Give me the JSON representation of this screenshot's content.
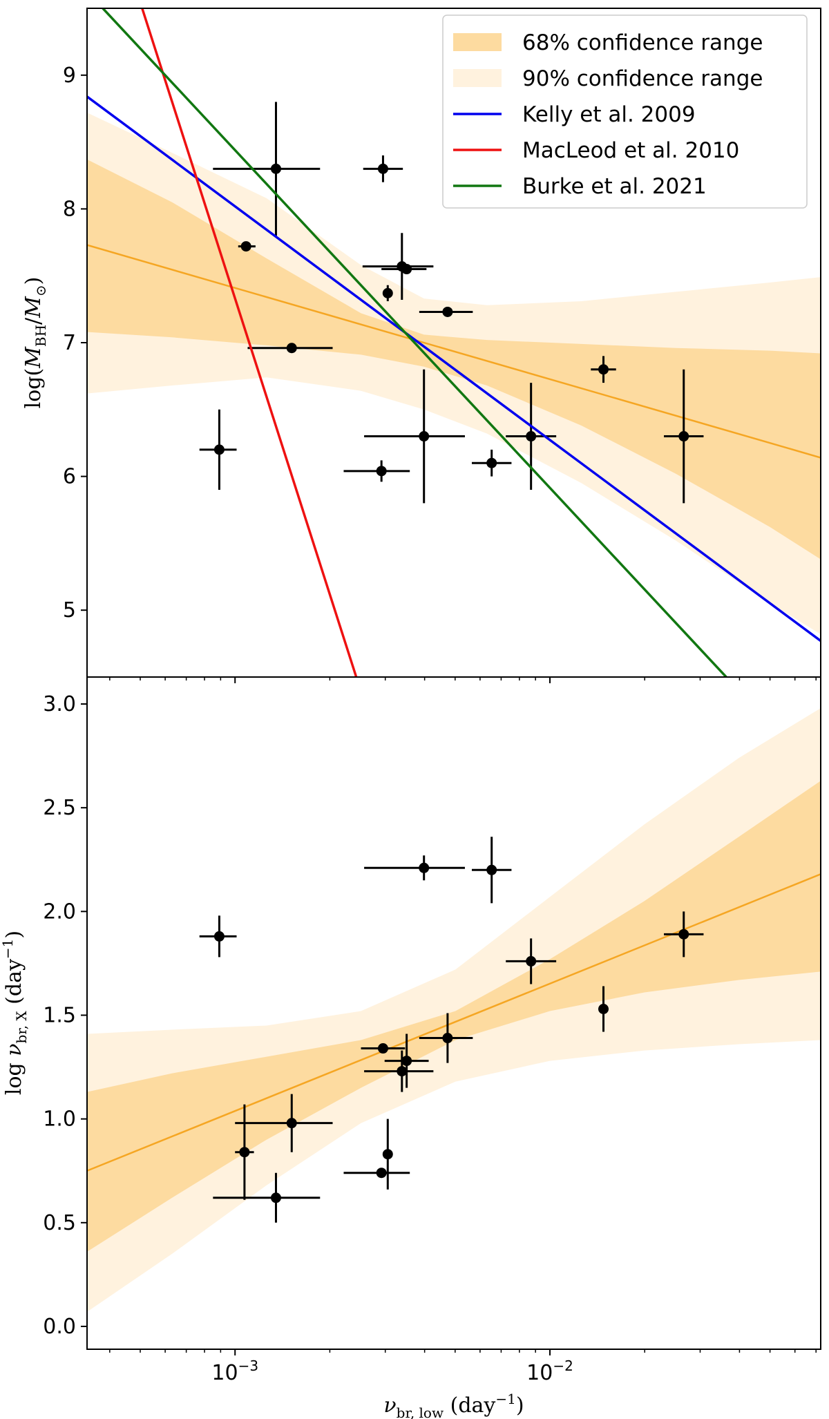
{
  "chart_data": [
    {
      "type": "scatter",
      "panel": "top",
      "xlabel": "",
      "ylabel": "log(M_BH/M_⊙)",
      "ylim": [
        4.5,
        9.5
      ],
      "xlim_log10": [
        -3.47,
        -1.14
      ],
      "yticks": [
        "5",
        "6",
        "7",
        "8",
        "9"
      ],
      "legend_position": "top-right",
      "legend": [
        {
          "label": "68% confidence range",
          "kind": "band",
          "color": "#fddba0"
        },
        {
          "label": "90% confidence range",
          "kind": "band",
          "color": "#fff2de"
        },
        {
          "label": "Kelly et al. 2009",
          "kind": "line",
          "color": "#0000ee"
        },
        {
          "label": "MacLeod et al. 2010",
          "kind": "line",
          "color": "#ee1111"
        },
        {
          "label": "Burke et al. 2021",
          "kind": "line",
          "color": "#117711"
        }
      ],
      "fit": {
        "x_log10": [
          -3.47,
          -1.14
        ],
        "y": [
          7.73,
          6.14
        ],
        "color": "#f5a623"
      },
      "band68": {
        "x_log10": [
          -3.47,
          -3.2,
          -2.9,
          -2.6,
          -2.4,
          -2.2,
          -1.9,
          -1.6,
          -1.3,
          -1.14
        ],
        "lower": [
          7.08,
          7.04,
          6.98,
          6.91,
          6.82,
          6.68,
          6.38,
          6.02,
          5.62,
          5.38
        ],
        "upper": [
          8.37,
          8.05,
          7.63,
          7.22,
          7.06,
          7.02,
          6.99,
          6.96,
          6.94,
          6.92
        ]
      },
      "band90": {
        "x_log10": [
          -3.47,
          -3.2,
          -2.9,
          -2.6,
          -2.4,
          -2.2,
          -1.9,
          -1.6,
          -1.3,
          -1.14
        ],
        "lower": [
          6.62,
          6.68,
          6.74,
          6.64,
          6.5,
          6.32,
          5.95,
          5.52,
          5.05,
          4.82
        ],
        "upper": [
          8.72,
          8.42,
          8.08,
          7.58,
          7.33,
          7.28,
          7.31,
          7.38,
          7.45,
          7.49
        ]
      },
      "reference_lines": [
        {
          "name": "Kelly et al. 2009",
          "x_log10": [
            -3.47,
            -1.14
          ],
          "y": [
            8.84,
            4.77
          ]
        },
        {
          "name": "MacLeod et al. 2010",
          "x_log10": [
            -3.295,
            -2.615
          ],
          "y": [
            9.5,
            4.5
          ]
        },
        {
          "name": "Burke et al. 2021",
          "x_log10": [
            -3.42,
            -1.44
          ],
          "y": [
            9.5,
            4.5
          ]
        }
      ],
      "points": [
        {
          "x_log10": -3.05,
          "y": 6.2,
          "xerr_lo": 0.063,
          "xerr_hi": 0.055,
          "yerr": 0.3
        },
        {
          "x_log10": -2.965,
          "y": 7.72,
          "xerr_lo": 0.025,
          "xerr_hi": 0.03,
          "yerr": 0.0
        },
        {
          "x_log10": -2.87,
          "y": 8.3,
          "xerr_lo": 0.2,
          "xerr_hi": 0.14,
          "yerr": 0.5
        },
        {
          "x_log10": -2.82,
          "y": 6.96,
          "xerr_lo": 0.14,
          "xerr_hi": 0.13,
          "yerr": 0.0
        },
        {
          "x_log10": -2.535,
          "y": 6.04,
          "xerr_lo": 0.12,
          "xerr_hi": 0.09,
          "yerr": 0.08
        },
        {
          "x_log10": -2.53,
          "y": 8.3,
          "xerr_lo": 0.063,
          "xerr_hi": 0.063,
          "yerr": 0.1
        },
        {
          "x_log10": -2.515,
          "y": 7.37,
          "xerr_lo": 0.0,
          "xerr_hi": 0.0,
          "yerr": 0.06
        },
        {
          "x_log10": -2.47,
          "y": 7.57,
          "xerr_lo": 0.125,
          "xerr_hi": 0.1,
          "yerr": 0.25
        },
        {
          "x_log10": -2.455,
          "y": 7.55,
          "xerr_lo": 0.08,
          "xerr_hi": 0.063,
          "yerr": 0.0
        },
        {
          "x_log10": -2.4,
          "y": 6.3,
          "xerr_lo": 0.19,
          "xerr_hi": 0.13,
          "yerr": 0.5
        },
        {
          "x_log10": -2.325,
          "y": 7.23,
          "xerr_lo": 0.09,
          "xerr_hi": 0.08,
          "yerr": 0.0
        },
        {
          "x_log10": -2.185,
          "y": 6.1,
          "xerr_lo": 0.063,
          "xerr_hi": 0.063,
          "yerr": 0.1
        },
        {
          "x_log10": -2.06,
          "y": 6.3,
          "xerr_lo": 0.08,
          "xerr_hi": 0.08,
          "yerr": 0.4
        },
        {
          "x_log10": -1.83,
          "y": 6.8,
          "xerr_lo": 0.04,
          "xerr_hi": 0.04,
          "yerr": 0.1
        },
        {
          "x_log10": -1.575,
          "y": 6.3,
          "xerr_lo": 0.063,
          "xerr_hi": 0.063,
          "yerr": 0.5
        }
      ]
    },
    {
      "type": "scatter",
      "panel": "bottom",
      "xlabel": "ν_br, low (day⁻¹)",
      "ylabel": "log ν_br, X (day⁻¹)",
      "ylim": [
        -0.11,
        3.13
      ],
      "xlim_log10": [
        -3.47,
        -1.14
      ],
      "yticks": [
        "0.0",
        "0.5",
        "1.0",
        "1.5",
        "2.0",
        "2.5",
        "3.0"
      ],
      "xticks": [
        {
          "label": "10",
          "exp": "−3"
        },
        {
          "label": "10",
          "exp": "−2"
        }
      ],
      "fit": {
        "x_log10": [
          -3.47,
          -1.14
        ],
        "y": [
          0.75,
          2.18
        ],
        "color": "#f5a623"
      },
      "band68": {
        "x_log10": [
          -3.47,
          -3.2,
          -2.9,
          -2.6,
          -2.3,
          -2.0,
          -1.7,
          -1.4,
          -1.14
        ],
        "lower": [
          0.36,
          0.62,
          0.9,
          1.15,
          1.38,
          1.52,
          1.61,
          1.67,
          1.71
        ],
        "upper": [
          1.13,
          1.22,
          1.3,
          1.38,
          1.52,
          1.77,
          2.05,
          2.36,
          2.63
        ]
      },
      "band90": {
        "x_log10": [
          -3.47,
          -3.2,
          -2.9,
          -2.6,
          -2.3,
          -2.0,
          -1.7,
          -1.4,
          -1.14
        ],
        "lower": [
          0.07,
          0.35,
          0.68,
          0.98,
          1.18,
          1.28,
          1.33,
          1.36,
          1.38
        ],
        "upper": [
          1.41,
          1.43,
          1.45,
          1.52,
          1.72,
          2.07,
          2.42,
          2.74,
          2.98
        ]
      },
      "points": [
        {
          "x_log10": -3.05,
          "y": 1.88,
          "xerr_lo": 0.063,
          "xerr_hi": 0.055,
          "yerr": 0.1
        },
        {
          "x_log10": -2.97,
          "y": 0.84,
          "xerr_lo": 0.03,
          "xerr_hi": 0.03,
          "yerr": 0.23
        },
        {
          "x_log10": -2.87,
          "y": 0.62,
          "xerr_lo": 0.2,
          "xerr_hi": 0.14,
          "yerr": 0.12
        },
        {
          "x_log10": -2.82,
          "y": 0.98,
          "xerr_lo": 0.18,
          "xerr_hi": 0.13,
          "yerr": 0.14
        },
        {
          "x_log10": -2.535,
          "y": 0.74,
          "xerr_lo": 0.12,
          "xerr_hi": 0.09,
          "yerr": 0.0
        },
        {
          "x_log10": -2.53,
          "y": 1.34,
          "xerr_lo": 0.07,
          "xerr_hi": 0.07,
          "yerr": 0.0
        },
        {
          "x_log10": -2.515,
          "y": 0.83,
          "xerr_lo": 0.0,
          "xerr_hi": 0.0,
          "yerr": 0.17
        },
        {
          "x_log10": -2.47,
          "y": 1.23,
          "xerr_lo": 0.12,
          "xerr_hi": 0.1,
          "yerr": 0.1
        },
        {
          "x_log10": -2.455,
          "y": 1.28,
          "xerr_lo": 0.07,
          "xerr_hi": 0.07,
          "yerr": 0.13
        },
        {
          "x_log10": -2.4,
          "y": 2.21,
          "xerr_lo": 0.19,
          "xerr_hi": 0.13,
          "yerr": 0.06
        },
        {
          "x_log10": -2.325,
          "y": 1.39,
          "xerr_lo": 0.09,
          "xerr_hi": 0.08,
          "yerr": 0.12
        },
        {
          "x_log10": -2.185,
          "y": 2.2,
          "xerr_lo": 0.063,
          "xerr_hi": 0.063,
          "yerr": 0.16
        },
        {
          "x_log10": -2.06,
          "y": 1.76,
          "xerr_lo": 0.08,
          "xerr_hi": 0.08,
          "yerr": 0.11
        },
        {
          "x_log10": -1.83,
          "y": 1.53,
          "xerr_lo": 0.0,
          "xerr_hi": 0.0,
          "yerr": 0.11
        },
        {
          "x_log10": -1.575,
          "y": 1.89,
          "xerr_lo": 0.063,
          "xerr_hi": 0.063,
          "yerr": 0.11
        }
      ]
    }
  ]
}
